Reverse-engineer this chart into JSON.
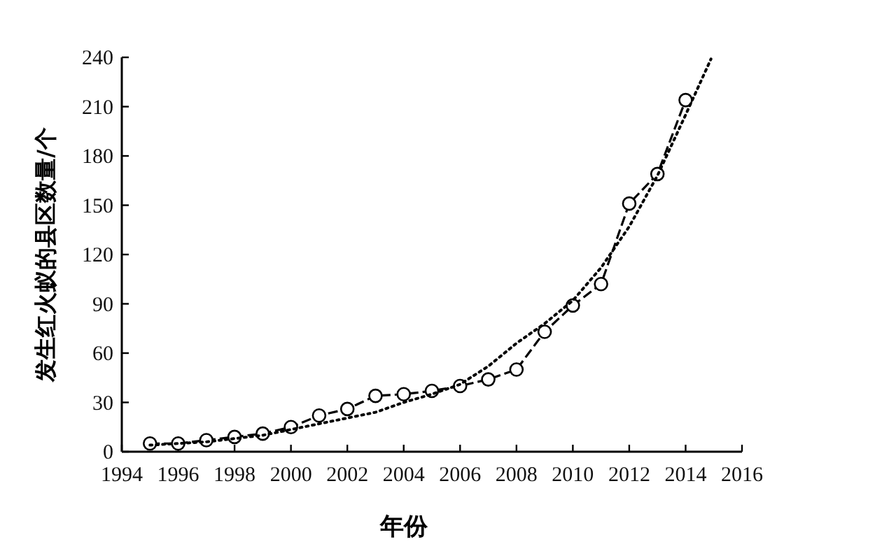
{
  "chart_data": {
    "type": "line",
    "xlabel": "年份",
    "ylabel": "发生红火蚁的县区数量/个",
    "xlim": [
      1994,
      2016
    ],
    "xticks": [
      1994,
      1996,
      1998,
      2000,
      2002,
      2004,
      2006,
      2008,
      2010,
      2012,
      2014,
      2016
    ],
    "ylim": [
      0,
      240
    ],
    "yticks": [
      0,
      30,
      60,
      90,
      120,
      150,
      180,
      210,
      240
    ],
    "series": [
      {
        "color": "#000000",
        "marker": "circle",
        "line_style": "dashed",
        "x": [
          1995,
          1996,
          1997,
          1998,
          1999,
          2000,
          2001,
          2002,
          2003,
          2004,
          2005,
          2006,
          2007,
          2008,
          2009,
          2010,
          2011,
          2012,
          2013,
          2014
        ],
        "values": [
          5,
          5,
          7,
          9,
          11,
          15,
          22,
          26,
          34,
          35,
          37,
          40,
          44,
          50,
          73,
          89,
          102,
          151,
          169,
          214
        ]
      },
      {
        "color": "#000000",
        "marker": "none",
        "line_style": "dotted",
        "x": [
          1995,
          1997,
          1999,
          2001,
          2003,
          2004,
          2005,
          2006,
          2007,
          2008,
          2009,
          2010,
          2011,
          2012,
          2013,
          2014,
          2014.9
        ],
        "values": [
          4,
          6,
          10,
          17,
          24,
          30,
          35,
          41,
          52,
          66,
          78,
          92,
          112,
          137,
          168,
          205,
          239
        ]
      }
    ]
  }
}
